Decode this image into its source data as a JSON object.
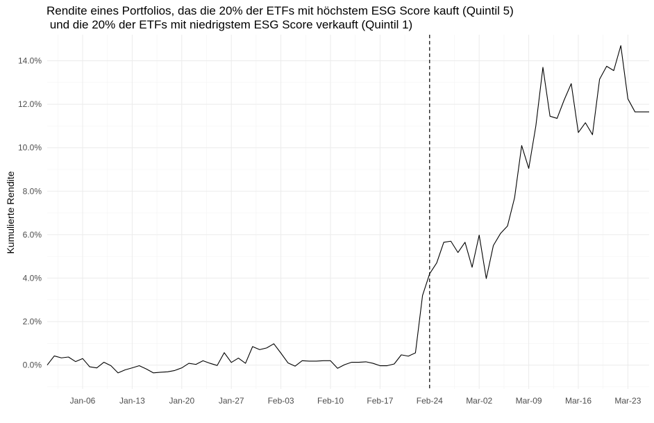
{
  "chart_data": {
    "type": "line",
    "title": [
      "Rendite eines Portfolios, das die 20% der ETFs mit höchstem ESG Score kauft (Quintil 5)",
      " und die 20% der ETFs mit niedrigstem ESG Score verkauft (Quintil 1)"
    ],
    "xlabel": "",
    "ylabel": "Kumulierte Rendite",
    "x_tick_labels": [
      "Jan-06",
      "Jan-13",
      "Jan-20",
      "Jan-27",
      "Feb-03",
      "Feb-10",
      "Feb-17",
      "Feb-24",
      "Mar-02",
      "Mar-09",
      "Mar-16",
      "Mar-23"
    ],
    "x_tick_dates": [
      "2020-01-06",
      "2020-01-13",
      "2020-01-20",
      "2020-01-27",
      "2020-02-03",
      "2020-02-10",
      "2020-02-17",
      "2020-02-24",
      "2020-03-02",
      "2020-03-09",
      "2020-03-16",
      "2020-03-23"
    ],
    "y_tick_labels": [
      "0.0%",
      "2.0%",
      "4.0%",
      "6.0%",
      "8.0%",
      "10.0%",
      "12.0%",
      "14.0%"
    ],
    "y_ticks": [
      0.0,
      0.02,
      0.04,
      0.06,
      0.08,
      0.1,
      0.12,
      0.14
    ],
    "xlim": [
      "2020-01-01",
      "2020-03-26"
    ],
    "ylim": [
      -0.011,
      0.152
    ],
    "grid": true,
    "legend": "none",
    "vline_date": "2020-02-24",
    "line_color": "#000000",
    "x": [
      "2020-01-01",
      "2020-01-02",
      "2020-01-03",
      "2020-01-04",
      "2020-01-05",
      "2020-01-06",
      "2020-01-07",
      "2020-01-08",
      "2020-01-09",
      "2020-01-10",
      "2020-01-11",
      "2020-01-12",
      "2020-01-13",
      "2020-01-14",
      "2020-01-15",
      "2020-01-16",
      "2020-01-17",
      "2020-01-18",
      "2020-01-19",
      "2020-01-20",
      "2020-01-21",
      "2020-01-22",
      "2020-01-23",
      "2020-01-24",
      "2020-01-25",
      "2020-01-26",
      "2020-01-27",
      "2020-01-28",
      "2020-01-29",
      "2020-01-30",
      "2020-01-31",
      "2020-02-01",
      "2020-02-02",
      "2020-02-03",
      "2020-02-04",
      "2020-02-05",
      "2020-02-06",
      "2020-02-07",
      "2020-02-08",
      "2020-02-09",
      "2020-02-10",
      "2020-02-11",
      "2020-02-12",
      "2020-02-13",
      "2020-02-14",
      "2020-02-15",
      "2020-02-16",
      "2020-02-17",
      "2020-02-18",
      "2020-02-19",
      "2020-02-20",
      "2020-02-21",
      "2020-02-22",
      "2020-02-23",
      "2020-02-24",
      "2020-02-25",
      "2020-02-26",
      "2020-02-27",
      "2020-02-28",
      "2020-02-29",
      "2020-03-01",
      "2020-03-02",
      "2020-03-03",
      "2020-03-04",
      "2020-03-05",
      "2020-03-06",
      "2020-03-07",
      "2020-03-08",
      "2020-03-09",
      "2020-03-10",
      "2020-03-11",
      "2020-03-12",
      "2020-03-13",
      "2020-03-14",
      "2020-03-15",
      "2020-03-16",
      "2020-03-17",
      "2020-03-18",
      "2020-03-19",
      "2020-03-20",
      "2020-03-21",
      "2020-03-22",
      "2020-03-23",
      "2020-03-24",
      "2020-03-25",
      "2020-03-26"
    ],
    "y": [
      0.0,
      0.0042,
      0.0033,
      0.0037,
      0.0016,
      0.003,
      -0.0008,
      -0.0013,
      0.0013,
      -0.0003,
      -0.0036,
      -0.0022,
      -0.0013,
      -0.0003,
      -0.0018,
      -0.0036,
      -0.0033,
      -0.0031,
      -0.0025,
      -0.0013,
      0.0008,
      0.0003,
      0.002,
      0.0008,
      -0.0002,
      0.0057,
      0.0012,
      0.0032,
      0.0008,
      0.0085,
      0.0071,
      0.0079,
      0.0098,
      0.0055,
      0.001,
      -0.0005,
      0.002,
      0.0018,
      0.0018,
      0.002,
      0.002,
      -0.0015,
      0.0002,
      0.0013,
      0.0013,
      0.0015,
      0.0008,
      -0.0003,
      -0.0003,
      0.0005,
      0.0047,
      0.0041,
      0.0056,
      0.032,
      0.042,
      0.047,
      0.0565,
      0.057,
      0.0518,
      0.0565,
      0.045,
      0.0598,
      0.0398,
      0.055,
      0.0605,
      0.064,
      0.077,
      0.101,
      0.0905,
      0.11,
      0.137,
      0.1145,
      0.1135,
      0.122,
      0.1295,
      0.107,
      0.1115,
      0.106,
      0.1315,
      0.1375,
      0.1355,
      0.147,
      0.1225,
      0.1165,
      0.1165,
      0.1165
    ]
  }
}
